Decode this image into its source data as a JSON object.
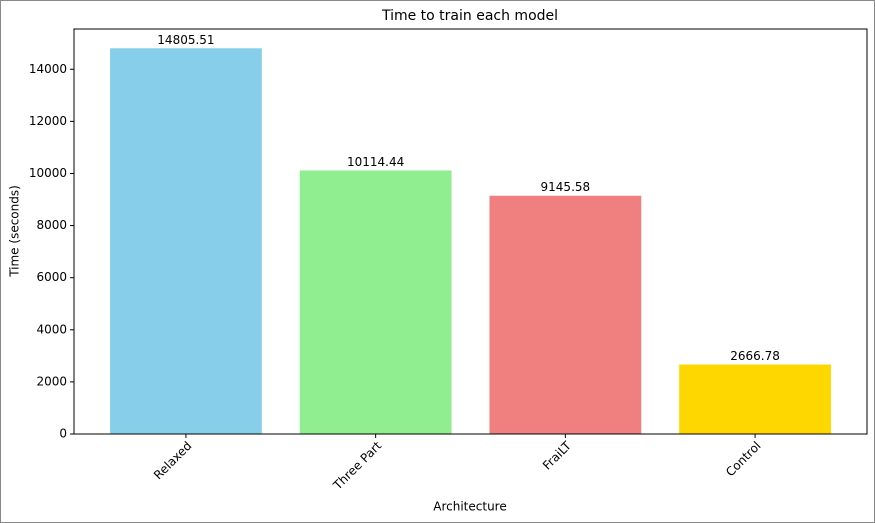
{
  "chart_data": {
    "type": "bar",
    "title": "Time to train each model",
    "x_label": "Architecture",
    "y_label": "Time (seconds)",
    "categories": [
      "Relaxed",
      "Three Part",
      "FraiLT",
      "Control"
    ],
    "values": [
      14805.51,
      10114.44,
      9145.58,
      2666.78
    ],
    "colors": [
      "#87ceeb",
      "#90ee90",
      "#f08080",
      "#ffd700"
    ],
    "ylim": [
      0,
      15546
    ],
    "yticks": [
      0,
      2000,
      4000,
      6000,
      8000,
      10000,
      12000,
      14000
    ],
    "grid": false
  }
}
